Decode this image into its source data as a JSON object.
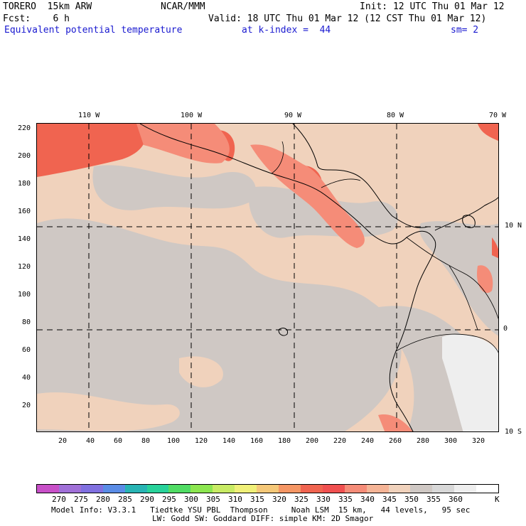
{
  "header": {
    "model": "TORERO  15km ARW",
    "org": "NCAR/MMM",
    "init": "Init: 12 UTC Thu 01 Mar 12",
    "fcst": "Fcst:    6 h",
    "valid": "Valid: 18 UTC Thu 01 Mar 12 (12 CST Thu 01 Mar 12)",
    "field": "Equivalent potential temperature",
    "level": "at k-index =  44",
    "smooth": "sm= 2"
  },
  "map": {
    "lon_labels": [
      "110 W",
      "100 W",
      "90 W",
      "80 W",
      "70 W"
    ],
    "lat_labels": [
      "10 N",
      "0",
      "10 S"
    ],
    "y_ticks": [
      "220",
      "200",
      "180",
      "160",
      "140",
      "120",
      "100",
      "80",
      "60",
      "40",
      "20"
    ],
    "x_ticks": [
      "20",
      "40",
      "60",
      "80",
      "100",
      "120",
      "140",
      "160",
      "180",
      "200",
      "220",
      "240",
      "260",
      "280",
      "300",
      "320"
    ]
  },
  "colorbar": {
    "labels": [
      "270",
      "275",
      "280",
      "285",
      "290",
      "295",
      "300",
      "305",
      "310",
      "315",
      "320",
      "325",
      "330",
      "335",
      "340",
      "345",
      "350",
      "355",
      "360"
    ],
    "unit": "K",
    "colors": [
      "#c850c8",
      "#a070d8",
      "#8070e0",
      "#5a8ce6",
      "#28b4b4",
      "#28d29a",
      "#50dc64",
      "#8ce650",
      "#c8eb64",
      "#f0f078",
      "#f5c878",
      "#f59664",
      "#f06450",
      "#f05050",
      "#f58c78",
      "#f5b496",
      "#f0d2bc",
      "#cfc8c4",
      "#d8d8d8",
      "#eeeeee",
      "#ffffff"
    ]
  },
  "footer": {
    "line1": "Model Info: V3.3.1   Tiedtke YSU PBL  Thompson     Noah LSM  15 km,   44 levels,   95 sec",
    "line2": "LW: Godd SW: Goddard DIFF: simple KM: 2D Smagor"
  },
  "colors": {
    "warm": "#f0d2bc",
    "gray": "#cfc8c4",
    "light": "#eeeeee",
    "hot": "#f06450",
    "mid": "#f58c78",
    "title_blue": "#1a1ad0"
  }
}
